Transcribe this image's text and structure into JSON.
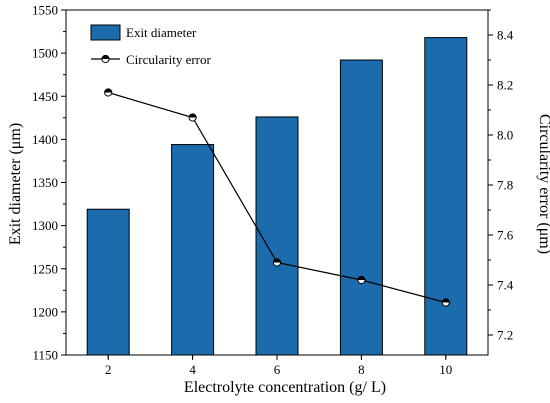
{
  "chart_data": {
    "type": "bar",
    "categories": [
      "2",
      "4",
      "6",
      "8",
      "10"
    ],
    "x_values": [
      2,
      4,
      6,
      8,
      10
    ],
    "xlabel": "Electrolyte concentration (g/ L)",
    "ylabel_left": "Exit diameter (μm)",
    "ylabel_right": "Circularity error (μm)",
    "ylim_left": [
      1150,
      1550
    ],
    "yticks_left": [
      1150,
      1200,
      1250,
      1300,
      1350,
      1400,
      1450,
      1500,
      1550
    ],
    "ylim_right": [
      7.12,
      8.5
    ],
    "yticks_right": [
      "7.2",
      "7.4",
      "7.6",
      "7.8",
      "8.0",
      "8.2",
      "8.4"
    ],
    "grid": false,
    "legend_position": "top-left",
    "series": [
      {
        "name": "Exit diameter",
        "kind": "bar",
        "axis": "left",
        "values": [
          1319,
          1394,
          1426,
          1492,
          1518
        ],
        "color": "#1b6bad",
        "edge_color": "#000000"
      },
      {
        "name": "Circularity error",
        "kind": "line",
        "axis": "right",
        "values": [
          8.17,
          8.07,
          7.49,
          7.42,
          7.33
        ],
        "color": "#000000",
        "marker": "half-filled circle"
      }
    ]
  }
}
